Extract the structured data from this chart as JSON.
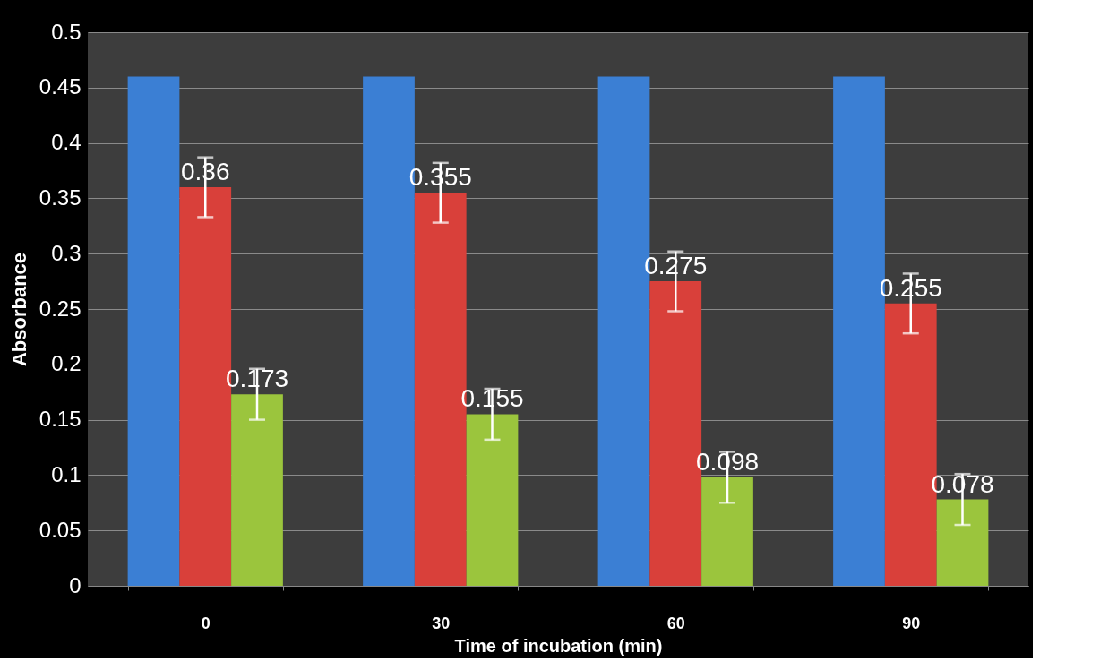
{
  "chart_data": {
    "type": "bar",
    "xlabel": "Time of incubation (min)",
    "ylabel": "Absorbance",
    "categories": [
      "0",
      "30",
      "60",
      "90"
    ],
    "series": [
      {
        "color": "#3b7fd4",
        "values": [
          0.46,
          0.46,
          0.46,
          0.46
        ]
      },
      {
        "color": "#d9403a",
        "values": [
          0.36,
          0.355,
          0.275,
          0.255
        ],
        "errors": [
          0.027,
          0.027,
          0.027,
          0.027
        ],
        "value_labels": [
          "0.36",
          "0.355",
          "0.275",
          "0.255"
        ]
      },
      {
        "color": "#9bc53d",
        "values": [
          0.173,
          0.155,
          0.098,
          0.078
        ],
        "errors": [
          0.023,
          0.023,
          0.023,
          0.023
        ],
        "value_labels": [
          "0.173",
          "0.155",
          "0.098",
          "0.078"
        ]
      }
    ],
    "ylim": [
      0,
      0.5
    ],
    "yticks": [
      0,
      0.05,
      0.1,
      0.15,
      0.2,
      0.25,
      0.3,
      0.35,
      0.4,
      0.45,
      0.5
    ],
    "grid": true,
    "legend": false
  }
}
